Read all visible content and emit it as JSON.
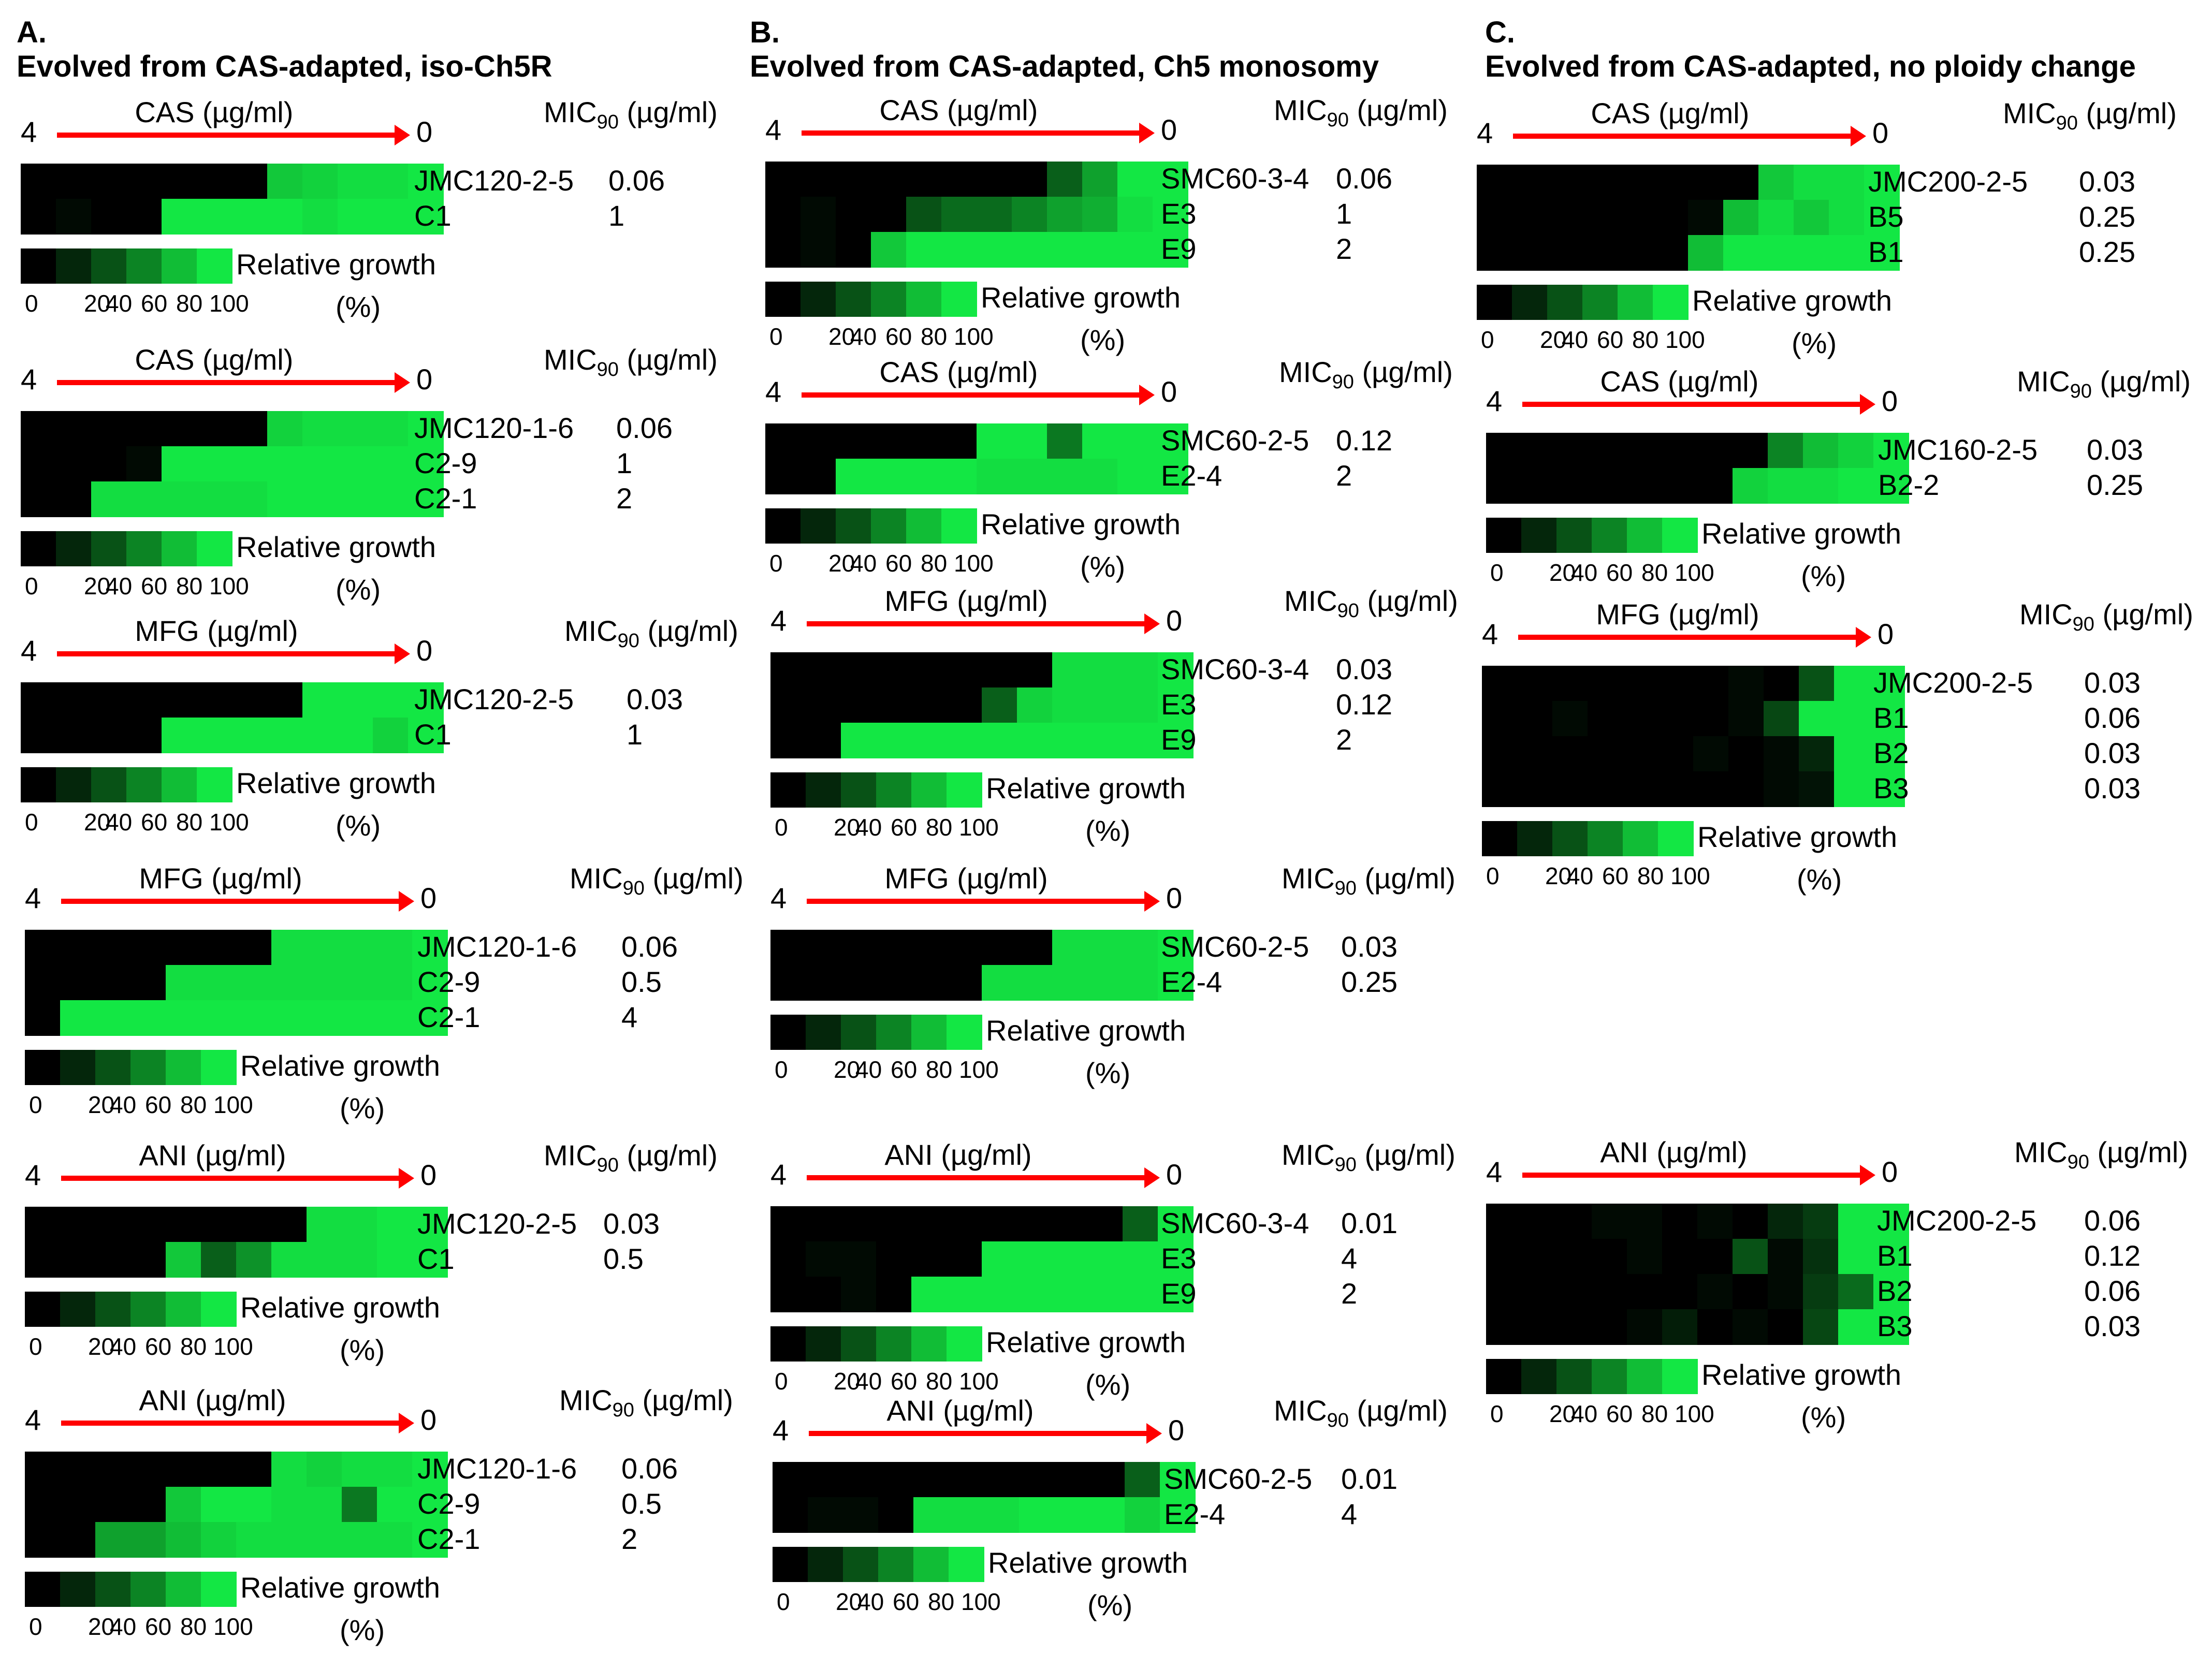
{
  "panels": [
    {
      "letter": "A.",
      "title": "Evolved from CAS-adapted, iso-Ch5R"
    },
    {
      "letter": "B.",
      "title": "Evolved from CAS-adapted, Ch5 monosomy"
    },
    {
      "letter": "C.",
      "title": "Evolved from CAS-adapted, no ploidy change"
    }
  ],
  "labels": {
    "conc_high": "4",
    "conc_low": "0",
    "mic_label": "MIC",
    "mic_sub": "90",
    "mic_unit": " (µg/ml)",
    "legend_title": "Relative growth",
    "legend_ticks": [
      "0",
      "20",
      "40",
      "60",
      "80",
      "100"
    ],
    "legend_unit": "(%)"
  },
  "colors": {
    "arrow": "#ff0000",
    "scale": [
      "#000000",
      "#04260b",
      "#085216",
      "#0c8424",
      "#11bd36",
      "#13e744"
    ]
  },
  "chart_data": [
    {
      "type": "heatmap",
      "panel": "A",
      "drug": "CAS (µg/ml)",
      "strains": [
        "JMC120-2-5",
        "C1"
      ],
      "mic": [
        "0.06",
        "1"
      ],
      "values": [
        [
          0,
          0,
          0,
          0,
          0,
          0,
          0,
          85,
          90,
          95,
          95,
          100
        ],
        [
          0,
          5,
          0,
          0,
          100,
          100,
          100,
          100,
          95,
          100,
          100,
          100
        ]
      ]
    },
    {
      "type": "heatmap",
      "panel": "A",
      "drug": "CAS (µg/ml)",
      "strains": [
        "JMC120-1-6",
        "C2-9",
        "C2-1"
      ],
      "mic": [
        "0.06",
        "1",
        "2"
      ],
      "values": [
        [
          0,
          0,
          0,
          0,
          0,
          0,
          0,
          90,
          95,
          95,
          95,
          100
        ],
        [
          0,
          0,
          0,
          5,
          100,
          100,
          100,
          100,
          100,
          100,
          100,
          100
        ],
        [
          0,
          0,
          95,
          95,
          95,
          95,
          95,
          100,
          100,
          100,
          100,
          100
        ]
      ]
    },
    {
      "type": "heatmap",
      "panel": "A",
      "drug": "MFG (µg/ml)",
      "strains": [
        "JMC120-2-5",
        "C1"
      ],
      "mic": [
        "0.03",
        "1"
      ],
      "values": [
        [
          0,
          0,
          0,
          0,
          0,
          0,
          0,
          0,
          100,
          100,
          100,
          100
        ],
        [
          0,
          0,
          0,
          0,
          100,
          100,
          100,
          100,
          100,
          100,
          90,
          100
        ]
      ]
    },
    {
      "type": "heatmap",
      "panel": "A",
      "drug": "MFG (µg/ml)",
      "strains": [
        "JMC120-1-6",
        "C2-9",
        "C2-1"
      ],
      "mic": [
        "0.06",
        "0.5",
        "4"
      ],
      "values": [
        [
          0,
          0,
          0,
          0,
          0,
          0,
          0,
          95,
          95,
          95,
          95,
          100
        ],
        [
          0,
          0,
          0,
          0,
          95,
          95,
          95,
          95,
          95,
          95,
          95,
          100
        ],
        [
          0,
          100,
          100,
          100,
          100,
          100,
          100,
          100,
          100,
          100,
          100,
          100
        ]
      ]
    },
    {
      "type": "heatmap",
      "panel": "A",
      "drug": "ANI (µg/ml)",
      "strains": [
        "JMC120-2-5",
        "C1"
      ],
      "mic": [
        "0.03",
        "0.5"
      ],
      "values": [
        [
          0,
          0,
          0,
          0,
          0,
          0,
          0,
          0,
          95,
          95,
          100,
          100
        ],
        [
          0,
          0,
          0,
          0,
          85,
          45,
          65,
          95,
          95,
          95,
          100,
          100
        ]
      ]
    },
    {
      "type": "heatmap",
      "panel": "A",
      "drug": "ANI (µg/ml)",
      "strains": [
        "JMC120-1-6",
        "C2-9",
        "C2-1"
      ],
      "mic": [
        "0.06",
        "0.5",
        "2"
      ],
      "values": [
        [
          0,
          0,
          0,
          0,
          0,
          0,
          0,
          95,
          90,
          95,
          95,
          100
        ],
        [
          0,
          0,
          0,
          0,
          85,
          100,
          100,
          95,
          95,
          55,
          100,
          100
        ],
        [
          0,
          0,
          70,
          70,
          80,
          90,
          95,
          95,
          95,
          95,
          95,
          100
        ]
      ]
    },
    {
      "type": "heatmap",
      "panel": "B",
      "drug": "CAS (µg/ml)",
      "strains": [
        "SMC60-3-4",
        "E3",
        "E9"
      ],
      "mic": [
        "0.06",
        "1",
        "2"
      ],
      "values": [
        [
          0,
          0,
          0,
          0,
          0,
          0,
          0,
          0,
          45,
          70,
          100,
          100
        ],
        [
          0,
          5,
          0,
          0,
          40,
          50,
          50,
          60,
          70,
          75,
          95,
          100
        ],
        [
          0,
          5,
          0,
          85,
          100,
          100,
          100,
          100,
          100,
          100,
          100,
          100
        ]
      ]
    },
    {
      "type": "heatmap",
      "panel": "B",
      "drug": "CAS (µg/ml)",
      "strains": [
        "SMC60-2-5",
        "E2-4"
      ],
      "mic": [
        "0.12",
        "2"
      ],
      "values": [
        [
          0,
          0,
          0,
          0,
          0,
          0,
          100,
          100,
          55,
          100,
          100,
          100
        ],
        [
          0,
          0,
          100,
          100,
          100,
          100,
          95,
          95,
          95,
          95,
          100,
          100
        ]
      ]
    },
    {
      "type": "heatmap",
      "panel": "B",
      "drug": "MFG (µg/ml)",
      "strains": [
        "SMC60-3-4",
        "E3",
        "E9"
      ],
      "mic": [
        "0.03",
        "0.12",
        "2"
      ],
      "values": [
        [
          0,
          0,
          0,
          0,
          0,
          0,
          0,
          0,
          95,
          95,
          95,
          100
        ],
        [
          0,
          0,
          0,
          0,
          0,
          0,
          45,
          90,
          95,
          95,
          95,
          100
        ],
        [
          0,
          0,
          100,
          100,
          100,
          100,
          100,
          100,
          100,
          100,
          100,
          100
        ]
      ]
    },
    {
      "type": "heatmap",
      "panel": "B",
      "drug": "MFG (µg/ml)",
      "strains": [
        "SMC60-2-5",
        "E2-4"
      ],
      "mic": [
        "0.03",
        "0.25"
      ],
      "values": [
        [
          0,
          0,
          0,
          0,
          0,
          0,
          0,
          0,
          95,
          95,
          95,
          100
        ],
        [
          0,
          0,
          0,
          0,
          0,
          0,
          95,
          95,
          95,
          95,
          95,
          100
        ]
      ]
    },
    {
      "type": "heatmap",
      "panel": "B",
      "drug": "ANI (µg/ml)",
      "strains": [
        "SMC60-3-4",
        "E3",
        "E9"
      ],
      "mic": [
        "0.01",
        "4",
        "2"
      ],
      "values": [
        [
          0,
          0,
          0,
          0,
          0,
          0,
          0,
          0,
          0,
          0,
          45,
          100
        ],
        [
          0,
          5,
          5,
          0,
          0,
          0,
          100,
          100,
          100,
          100,
          100,
          100
        ],
        [
          0,
          0,
          5,
          0,
          100,
          100,
          100,
          100,
          100,
          100,
          100,
          100
        ]
      ]
    },
    {
      "type": "heatmap",
      "panel": "B",
      "drug": "ANI (µg/ml)",
      "strains": [
        "SMC60-2-5",
        "E2-4"
      ],
      "mic": [
        "0.01",
        "4"
      ],
      "values": [
        [
          0,
          0,
          0,
          0,
          0,
          0,
          0,
          0,
          0,
          0,
          45,
          100
        ],
        [
          0,
          5,
          5,
          0,
          95,
          95,
          95,
          100,
          100,
          100,
          90,
          100
        ]
      ]
    },
    {
      "type": "heatmap",
      "panel": "C",
      "drug": "CAS (µg/ml)",
      "strains": [
        "JMC200-2-5",
        "B5",
        "B1"
      ],
      "mic": [
        "0.03",
        "0.25",
        "0.25"
      ],
      "values": [
        [
          0,
          0,
          0,
          0,
          0,
          0,
          0,
          0,
          85,
          95,
          95,
          100
        ],
        [
          0,
          0,
          0,
          0,
          0,
          0,
          5,
          80,
          95,
          85,
          95,
          100
        ],
        [
          0,
          0,
          0,
          0,
          0,
          0,
          80,
          100,
          100,
          100,
          100,
          100
        ]
      ]
    },
    {
      "type": "heatmap",
      "panel": "C",
      "drug": "CAS (µg/ml)",
      "strains": [
        "JMC160-2-5",
        "B2-2"
      ],
      "mic": [
        "0.03",
        "0.25"
      ],
      "values": [
        [
          0,
          0,
          0,
          0,
          0,
          0,
          0,
          0,
          60,
          80,
          90,
          100
        ],
        [
          0,
          0,
          0,
          0,
          0,
          0,
          0,
          90,
          95,
          95,
          100,
          100
        ]
      ]
    },
    {
      "type": "heatmap",
      "panel": "C",
      "drug": "MFG (µg/ml)",
      "strains": [
        "JMC200-2-5",
        "B1",
        "B2",
        "B3"
      ],
      "mic": [
        "0.03",
        "0.06",
        "0.03",
        "0.03"
      ],
      "values": [
        [
          0,
          0,
          0,
          0,
          0,
          0,
          0,
          5,
          0,
          40,
          100,
          100
        ],
        [
          0,
          0,
          5,
          0,
          0,
          0,
          0,
          5,
          35,
          100,
          100,
          100
        ],
        [
          0,
          0,
          0,
          0,
          0,
          0,
          5,
          0,
          5,
          20,
          100,
          100
        ],
        [
          0,
          0,
          0,
          0,
          0,
          0,
          0,
          0,
          5,
          10,
          100,
          100
        ]
      ]
    },
    {
      "type": "heatmap",
      "panel": "C",
      "drug": "ANI (µg/ml)",
      "strains": [
        "JMC200-2-5",
        "B1",
        "B2",
        "B3"
      ],
      "mic": [
        "0.06",
        "0.12",
        "0.06",
        "0.03"
      ],
      "values": [
        [
          0,
          0,
          0,
          5,
          5,
          0,
          5,
          0,
          20,
          30,
          100,
          100
        ],
        [
          0,
          0,
          0,
          0,
          5,
          0,
          0,
          40,
          5,
          25,
          100,
          100
        ],
        [
          0,
          0,
          0,
          0,
          0,
          0,
          5,
          0,
          5,
          30,
          50,
          100
        ],
        [
          0,
          0,
          0,
          0,
          5,
          15,
          0,
          5,
          0,
          35,
          100,
          100
        ]
      ]
    }
  ]
}
